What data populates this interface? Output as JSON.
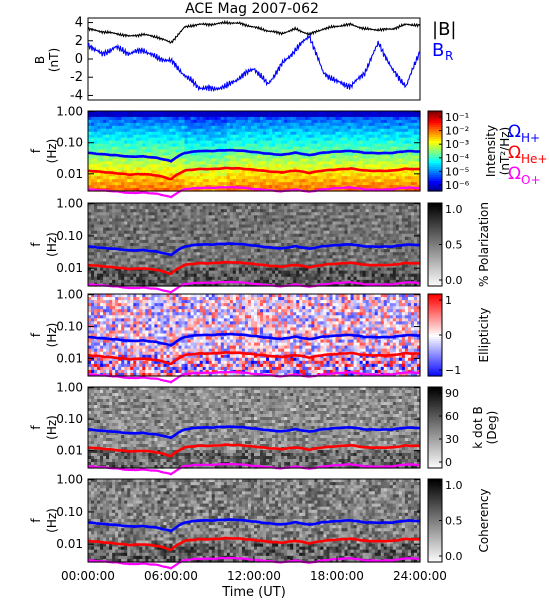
{
  "title": "ACE Mag 2007-062",
  "x_axis": {
    "label": "Time (UT)",
    "ticks": [
      "00:00:00",
      "06:00:00",
      "12:00:00",
      "18:00:00",
      "24:00:00"
    ],
    "range_hours": [
      0,
      24
    ]
  },
  "colors": {
    "B_total": "#000000",
    "B_R": "#0000ff",
    "H_gyro": "#0000ff",
    "He_gyro": "#ff0000",
    "O_gyro": "#ff00ff"
  },
  "gyro_labels": {
    "h": "Ω",
    "h_sub": "H+",
    "he": "Ω",
    "he_sub": "He+",
    "o": "Ω",
    "o_sub": "O+"
  },
  "chart_data": [
    {
      "type": "line",
      "panel": "magnetic_field",
      "ylabel": "B",
      "yunit": "(nT)",
      "ylim": [
        -4.5,
        4.5
      ],
      "yticks": [
        "4",
        "2",
        "0",
        "-2",
        "-4"
      ],
      "x_hours": [
        0,
        1,
        2,
        3,
        4,
        5,
        6,
        7,
        8,
        9,
        10,
        11,
        12,
        13,
        14,
        15,
        16,
        17,
        18,
        19,
        20,
        21,
        22,
        23,
        24
      ],
      "series": [
        {
          "name": "|B|",
          "values": [
            3.3,
            3.0,
            2.8,
            2.5,
            2.7,
            2.4,
            1.8,
            3.5,
            3.8,
            3.8,
            4.0,
            3.9,
            3.5,
            3.1,
            2.8,
            3.3,
            2.7,
            3.3,
            3.6,
            3.8,
            3.3,
            3.2,
            3.3,
            3.8,
            3.7
          ]
        },
        {
          "name": "B_R",
          "sub": "R",
          "values": [
            1.6,
            0.5,
            1.3,
            0.6,
            1.0,
            0.1,
            -0.2,
            -1.8,
            -3.1,
            -3.3,
            -3.0,
            -2.0,
            -1.0,
            -2.8,
            -0.6,
            1.0,
            2.6,
            -1.5,
            -2.5,
            -3.0,
            -1.5,
            1.8,
            -1.2,
            -3.0,
            0.9
          ]
        }
      ]
    },
    {
      "type": "heatmap",
      "panel": "intensity",
      "ylabel": "f",
      "yunit": "(Hz)",
      "yticks": [
        "1.00",
        "0.10",
        "0.01"
      ],
      "colorbar": {
        "label": "Intensity",
        "unit": "(nT²/Hz)",
        "ticks": [
          "10⁻¹",
          "10⁻²",
          "10⁻³",
          "10⁻⁴",
          "10⁻⁵",
          "10⁻⁶"
        ]
      }
    },
    {
      "type": "heatmap",
      "panel": "polarization",
      "ylabel": "f",
      "yunit": "(Hz)",
      "yticks": [
        "1.00",
        "0.10",
        "0.01"
      ],
      "colorbar": {
        "label": "% Polarization",
        "ticks": [
          "1.0",
          "0.5",
          "0.0"
        ]
      }
    },
    {
      "type": "heatmap",
      "panel": "ellipticity",
      "ylabel": "f",
      "yunit": "(Hz)",
      "yticks": [
        "1.00",
        "0.10",
        "0.01"
      ],
      "colorbar": {
        "label": "Ellipticity",
        "ticks": [
          "1",
          "0",
          "−1"
        ]
      }
    },
    {
      "type": "heatmap",
      "panel": "wave_normal",
      "ylabel": "f",
      "yunit": "(Hz)",
      "yticks": [
        "1.00",
        "0.10",
        "0.01"
      ],
      "colorbar": {
        "label": "k dot B",
        "unit": "(Deg)",
        "ticks": [
          "90",
          "60",
          "30",
          "0"
        ]
      }
    },
    {
      "type": "heatmap",
      "panel": "coherency",
      "ylabel": "f",
      "yunit": "(Hz)",
      "yticks": [
        "1.00",
        "0.10",
        "0.01"
      ],
      "colorbar": {
        "label": "Coherency",
        "ticks": [
          "1.0",
          "0.5",
          "0.0"
        ]
      }
    },
    {
      "type": "line",
      "panel": "gyrofrequencies",
      "x_hours": [
        0,
        1,
        2,
        3,
        4,
        5,
        6,
        7,
        8,
        9,
        10,
        11,
        12,
        13,
        14,
        15,
        16,
        17,
        18,
        19,
        20,
        21,
        22,
        23,
        24
      ],
      "series": [
        {
          "name": "Ω H+",
          "values": [
            0.047,
            0.043,
            0.04,
            0.036,
            0.037,
            0.033,
            0.026,
            0.048,
            0.055,
            0.055,
            0.058,
            0.056,
            0.05,
            0.044,
            0.04,
            0.047,
            0.039,
            0.047,
            0.051,
            0.054,
            0.047,
            0.046,
            0.047,
            0.054,
            0.053
          ]
        },
        {
          "name": "Ω He+",
          "values": [
            0.0125,
            0.0115,
            0.0105,
            0.0095,
            0.01,
            0.009,
            0.0068,
            0.013,
            0.0145,
            0.0145,
            0.0155,
            0.015,
            0.0135,
            0.012,
            0.011,
            0.0125,
            0.0105,
            0.0125,
            0.0135,
            0.0145,
            0.0125,
            0.0122,
            0.0125,
            0.0145,
            0.014
          ]
        },
        {
          "name": "Ω O+",
          "values": [
            0.0031,
            0.0029,
            0.0027,
            0.0024,
            0.0025,
            0.0023,
            0.0018,
            0.0033,
            0.0036,
            0.0036,
            0.0038,
            0.0037,
            0.0033,
            0.003,
            0.0027,
            0.0031,
            0.0026,
            0.0031,
            0.0034,
            0.0036,
            0.0031,
            0.003,
            0.0031,
            0.0036,
            0.0035
          ]
        }
      ]
    }
  ]
}
